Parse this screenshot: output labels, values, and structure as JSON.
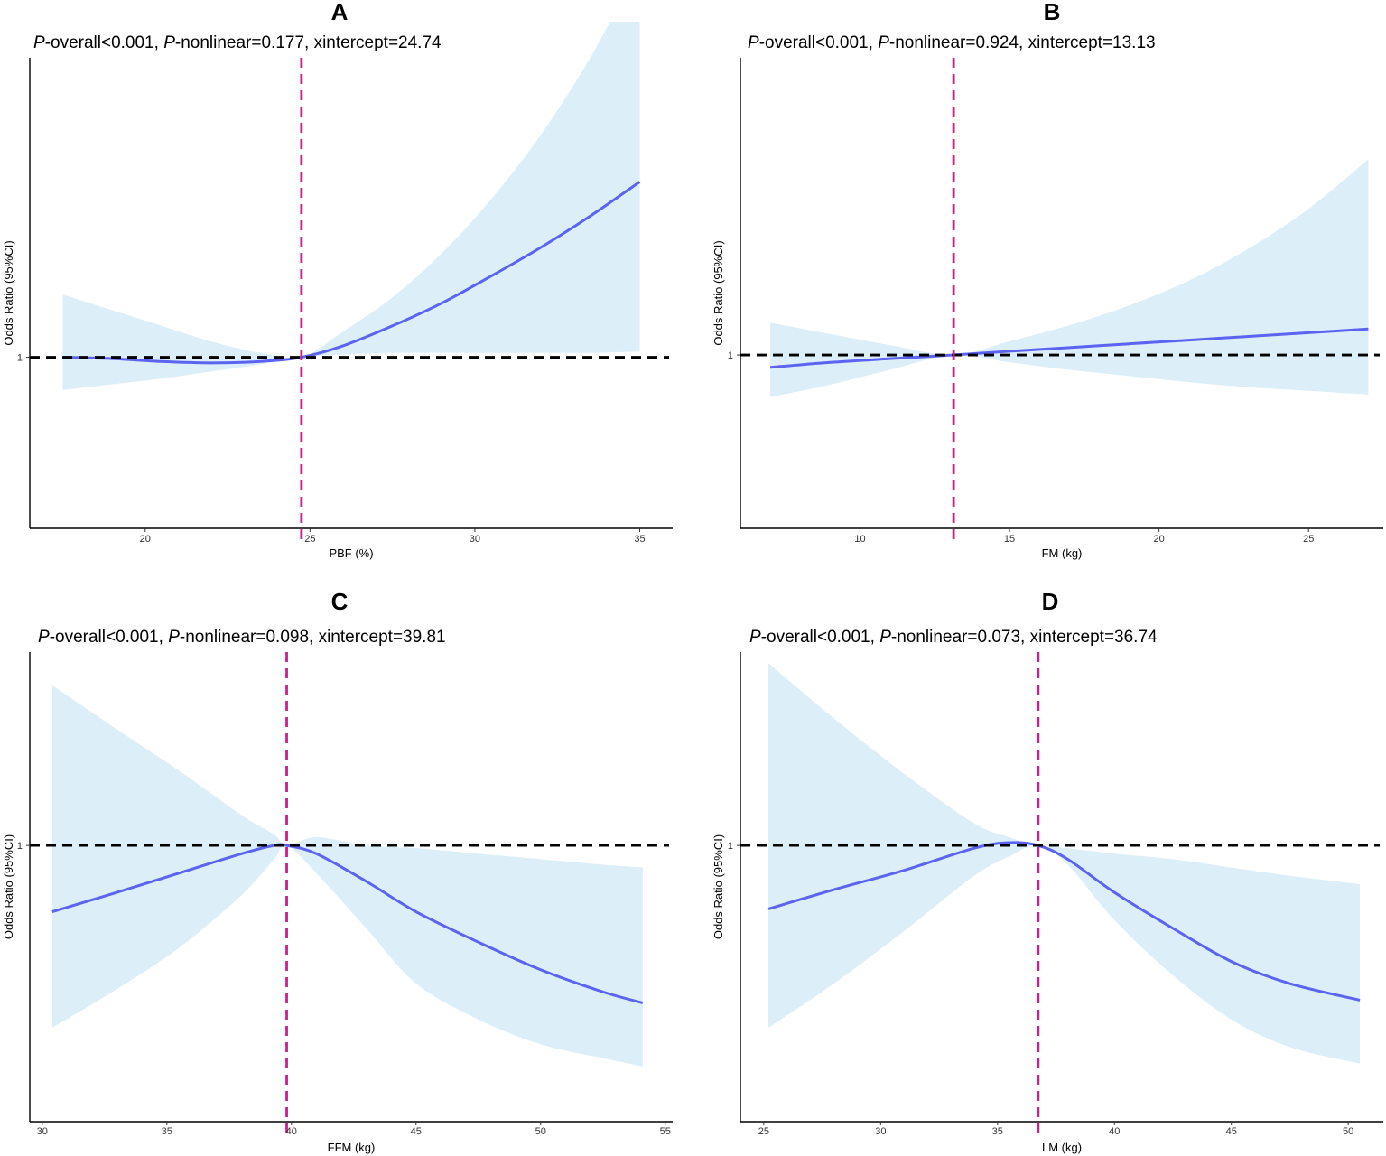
{
  "figure": {
    "colors": {
      "ci_band": "#dceef8",
      "curve": "#5b63f0",
      "reference_line": "#000000",
      "intercept_line": "#cc1f8a",
      "axis": "#000000"
    }
  },
  "chart_data": [
    {
      "panel": "A",
      "type": "line",
      "stats": {
        "p_overall_prefix": "P",
        "p_overall_rest": "-overall<0.001, ",
        "p_nonlinear_prefix": "P",
        "p_nonlinear_rest": "-nonlinear=0.177, xintercept=24.74"
      },
      "xlabel": "PBF (%)",
      "ylabel": "Odds Ratio (95%CI)",
      "xlim": [
        16.5,
        36
      ],
      "xticks": [
        20,
        25,
        30,
        35
      ],
      "xtick_labels": [
        "20",
        "25",
        "30",
        "35"
      ],
      "ylim": [
        0.88,
        1.21
      ],
      "yticks": [
        1
      ],
      "ytick_labels": [
        "1"
      ],
      "reference_y": 1,
      "xintercept": 24.74,
      "series": [
        {
          "name": "OR",
          "x": [
            17.5,
            19,
            20.5,
            22,
            23.5,
            24.74,
            26,
            27.5,
            29,
            30.5,
            32,
            33.5,
            35
          ],
          "y": [
            1.0,
            0.999,
            0.997,
            0.996,
            0.997,
            1.0,
            1.008,
            1.022,
            1.038,
            1.057,
            1.077,
            1.099,
            1.123
          ],
          "lower": [
            0.977,
            0.981,
            0.985,
            0.99,
            0.995,
            1.0,
            1.002,
            1.003,
            1.003,
            1.003,
            1.003,
            1.003,
            1.004
          ],
          "upper": [
            1.044,
            1.033,
            1.022,
            1.011,
            1.003,
            1.0,
            1.018,
            1.042,
            1.073,
            1.111,
            1.156,
            1.21,
            1.275
          ]
        }
      ]
    },
    {
      "panel": "B",
      "type": "line",
      "stats": {
        "p_overall_prefix": "P",
        "p_overall_rest": "-overall<0.001, ",
        "p_nonlinear_prefix": "P",
        "p_nonlinear_rest": "-nonlinear=0.924, xintercept=13.13"
      },
      "xlabel": "FM (kg)",
      "ylabel": "Odds Ratio (95%CI)",
      "xlim": [
        6,
        27.5
      ],
      "xticks": [
        10,
        15,
        20,
        25
      ],
      "xtick_labels": [
        "10",
        "15",
        "20",
        "25"
      ],
      "ylim": [
        0.86,
        1.24
      ],
      "yticks": [
        1
      ],
      "ytick_labels": [
        "1"
      ],
      "reference_y": 1,
      "xintercept": 13.13,
      "series": [
        {
          "name": "OR",
          "x": [
            7,
            9,
            11,
            13.13,
            15,
            17,
            19,
            21,
            23,
            25,
            27
          ],
          "y": [
            0.99,
            0.994,
            0.997,
            1.0,
            1.003,
            1.006,
            1.009,
            1.012,
            1.015,
            1.018,
            1.021
          ],
          "lower": [
            0.966,
            0.976,
            0.988,
            1.0,
            0.994,
            0.988,
            0.983,
            0.978,
            0.974,
            0.971,
            0.968
          ],
          "upper": [
            1.026,
            1.017,
            1.008,
            1.0,
            1.011,
            1.024,
            1.04,
            1.06,
            1.086,
            1.118,
            1.158
          ]
        }
      ]
    },
    {
      "panel": "C",
      "type": "line",
      "stats": {
        "p_overall_prefix": "P",
        "p_overall_rest": "-overall<0.001, ",
        "p_nonlinear_prefix": "P",
        "p_nonlinear_rest": "-nonlinear=0.098, xintercept=39.81"
      },
      "xlabel": "FFM (kg)",
      "ylabel": "Odds Ratio (95%CI)",
      "xlim": [
        29.5,
        55.3
      ],
      "xticks": [
        30,
        35,
        40,
        45,
        50,
        55
      ],
      "xtick_labels": [
        "30",
        "35",
        "40",
        "45",
        "50",
        "55"
      ],
      "ylim": [
        0.9,
        1.07
      ],
      "yticks": [
        1
      ],
      "ytick_labels": [
        "1"
      ],
      "reference_y": 1,
      "xintercept": 39.81,
      "series": [
        {
          "name": "OR",
          "x": [
            30.4,
            33,
            35.5,
            38,
            39.3,
            39.81,
            41,
            43,
            45,
            47.5,
            50,
            52.5,
            54.1
          ],
          "y": [
            0.976,
            0.983,
            0.99,
            0.997,
            1.0,
            1.0,
            0.997,
            0.987,
            0.976,
            0.965,
            0.955,
            0.947,
            0.943
          ],
          "lower": [
            0.934,
            0.948,
            0.963,
            0.982,
            0.995,
            1.0,
            0.99,
            0.97,
            0.95,
            0.937,
            0.928,
            0.923,
            0.92
          ],
          "upper": [
            1.058,
            1.042,
            1.027,
            1.011,
            1.004,
            1.0,
            1.003,
            1.0,
            0.999,
            0.997,
            0.995,
            0.993,
            0.992
          ]
        }
      ]
    },
    {
      "panel": "D",
      "type": "line",
      "stats": {
        "p_overall_prefix": "P",
        "p_overall_rest": "-overall<0.001, ",
        "p_nonlinear_prefix": "P",
        "p_nonlinear_rest": "-nonlinear=0.073, xintercept=36.74"
      },
      "xlabel": "LM (kg)",
      "ylabel": "Odds Ratio (95%CI)",
      "xlim": [
        24,
        51.5
      ],
      "xticks": [
        25,
        30,
        35,
        40,
        45,
        50
      ],
      "xtick_labels": [
        "25",
        "30",
        "35",
        "40",
        "45",
        "50"
      ],
      "ylim": [
        0.9,
        1.07
      ],
      "yticks": [
        1
      ],
      "ytick_labels": [
        "1"
      ],
      "reference_y": 1,
      "xintercept": 36.74,
      "series": [
        {
          "name": "OR",
          "x": [
            25.2,
            28,
            31,
            34,
            35.5,
            36.74,
            38,
            40,
            42.5,
            45,
            47.5,
            50.5
          ],
          "y": [
            0.977,
            0.984,
            0.991,
            0.999,
            1.001,
            1.0,
            0.995,
            0.983,
            0.97,
            0.958,
            0.95,
            0.944
          ],
          "lower": [
            0.934,
            0.95,
            0.969,
            0.989,
            0.996,
            1.0,
            0.993,
            0.973,
            0.953,
            0.937,
            0.927,
            0.921
          ],
          "upper": [
            1.066,
            1.046,
            1.026,
            1.008,
            1.003,
            1.0,
            0.999,
            0.997,
            0.995,
            0.992,
            0.989,
            0.986
          ]
        }
      ]
    }
  ]
}
